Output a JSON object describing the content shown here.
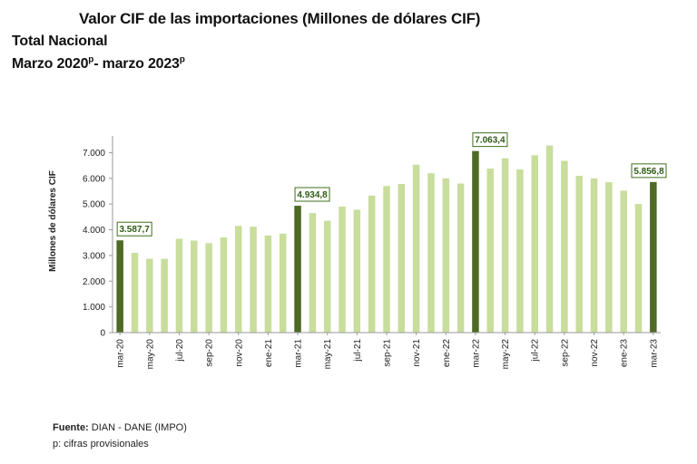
{
  "header": {
    "title": "Valor CIF de las importaciones (Millones de dólares CIF)",
    "subtitle_line1": "Total Nacional",
    "subtitle_line2_a": "Marzo 2020",
    "subtitle_line2_sup1": "p",
    "subtitle_line2_b": "- marzo 2023",
    "subtitle_line2_sup2": "p"
  },
  "footer": {
    "source_label": "Fuente:",
    "source_text": " DIAN - DANE (IMPO)",
    "note": "p: cifras provisionales"
  },
  "colors": {
    "bar_light": "#c9dd9c",
    "bar_dark": "#4e6a25",
    "label_text": "#2e5a14",
    "label_border": "#3f6e1e",
    "axis": "#9a9a9a"
  },
  "chart_data": {
    "type": "bar",
    "ylabel": "Millones de dólares CIF",
    "xlabel": "",
    "ylim": [
      0,
      7000
    ],
    "y_ticks": [
      "0",
      "1.000",
      "2.000",
      "3.000",
      "4.000",
      "5.000",
      "6.000",
      "7.000"
    ],
    "y_tick_values": [
      0,
      1000,
      2000,
      3000,
      4000,
      5000,
      6000,
      7000
    ],
    "grid": false,
    "categories": [
      "mar-20",
      "abr-20",
      "may-20",
      "jun-20",
      "jul-20",
      "ago-20",
      "sep-20",
      "oct-20",
      "nov-20",
      "dic-20",
      "ene-21",
      "feb-21",
      "mar-21",
      "abr-21",
      "may-21",
      "jun-21",
      "jul-21",
      "ago-21",
      "sep-21",
      "oct-21",
      "nov-21",
      "dic-21",
      "ene-22",
      "feb-22",
      "mar-22",
      "abr-22",
      "may-22",
      "jun-22",
      "jul-22",
      "ago-22",
      "sep-22",
      "oct-22",
      "nov-22",
      "dic-22",
      "ene-23",
      "feb-23",
      "mar-23"
    ],
    "x_tick_labels": [
      "mar-20",
      "may-20",
      "jul-20",
      "sep-20",
      "nov-20",
      "ene-21",
      "mar-21",
      "may-21",
      "jul-21",
      "sep-21",
      "nov-21",
      "ene-22",
      "mar-22",
      "may-22",
      "jul-22",
      "sep-22",
      "nov-22",
      "ene-23",
      "mar-23"
    ],
    "values": [
      3587.7,
      3100,
      2870,
      2870,
      3650,
      3580,
      3480,
      3700,
      4150,
      4120,
      3780,
      3850,
      4934.8,
      4650,
      4350,
      4900,
      4780,
      5330,
      5700,
      5780,
      6530,
      6200,
      6000,
      5800,
      7063.4,
      6380,
      6780,
      6350,
      6900,
      7280,
      6680,
      6100,
      6000,
      5850,
      5520,
      5000,
      5856.8
    ],
    "highlighted": [
      "mar-20",
      "mar-21",
      "mar-22",
      "mar-23"
    ],
    "data_labels": [
      {
        "category": "mar-20",
        "text": "3.587,7"
      },
      {
        "category": "mar-21",
        "text": "4.934,8"
      },
      {
        "category": "mar-22",
        "text": "7.063,4"
      },
      {
        "category": "mar-23",
        "text": "5.856,8"
      }
    ]
  }
}
